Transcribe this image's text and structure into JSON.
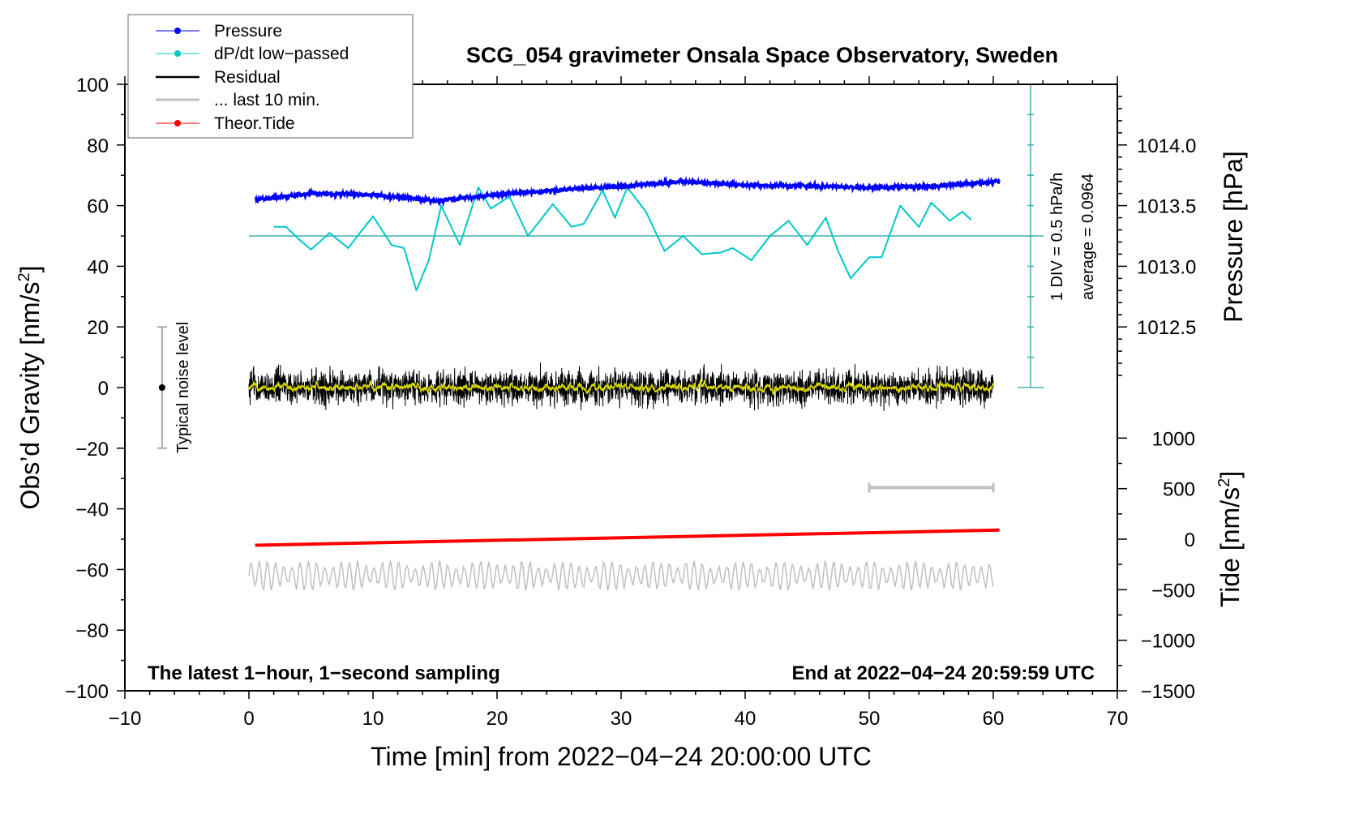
{
  "chart_data": {
    "type": "line",
    "title": "SCG_054 gravimeter Onsala Space Observatory, Sweden",
    "xlabel": "Time [min] from 2022−04−24 20:00:00 UTC",
    "ylabel_left": "Obs’d Gravity [nm/s²]",
    "ylabel_right_top": "Pressure [hPa]",
    "ylabel_right_bottom": "Tide [nm/s²]",
    "xlim": [
      -10,
      70
    ],
    "ylim": [
      -100,
      100
    ],
    "xticks": [
      "−10",
      "0",
      "10",
      "20",
      "30",
      "40",
      "50",
      "60",
      "70"
    ],
    "yticks": [
      "100",
      "80",
      "60",
      "40",
      "20",
      "0",
      "−20",
      "−40",
      "−60",
      "−80",
      "−100"
    ],
    "pressure_ticks": [
      "1014.0",
      "1013.5",
      "1013.0",
      "1012.5"
    ],
    "tide_ticks": [
      "1000",
      "500",
      "0",
      "−500",
      "−1000",
      "−1500"
    ],
    "legend": {
      "placement": "top-left",
      "entries": [
        "Pressure",
        "dP/dt low−passed",
        "Residual",
        "... last 10 min.",
        "Theor.Tide"
      ]
    },
    "annotations": {
      "noise_label": "Typical noise level",
      "div_label": "1 DIV = 0.5 hPa/h",
      "average_label": "average = 0.0964",
      "bottom_left": "The latest 1−hour, 1−second sampling",
      "bottom_right": "End at 2022−04−24 20:59:59 UTC"
    },
    "colors": {
      "pressure": "#0000ff",
      "dpdt": "#00c8c8",
      "residual": "#000000",
      "residual_smooth": "#d8d800",
      "last10": "#c0c0c0",
      "tide": "#ff0000",
      "scale": "#40b0b0"
    },
    "series": [
      {
        "name": "Pressure",
        "unit": "hPa",
        "x": [
          0.5,
          5,
          10,
          15,
          20,
          25,
          30,
          35,
          40,
          45,
          50,
          55,
          60.5
        ],
        "values": [
          1013.55,
          1013.6,
          1013.59,
          1013.54,
          1013.59,
          1013.63,
          1013.66,
          1013.7,
          1013.67,
          1013.66,
          1013.65,
          1013.66,
          1013.7
        ]
      },
      {
        "name": "dP/dt low-passed",
        "unit": "nm/s2 axis",
        "baseline": 50,
        "x": [
          2,
          3,
          4,
          5,
          6.5,
          8,
          10,
          11.5,
          12.5,
          13.5,
          14.5,
          15.5,
          17,
          18.5,
          19.5,
          21,
          22.5,
          24.5,
          26,
          27,
          28.5,
          29.5,
          30.5,
          32,
          33.5,
          35,
          36.5,
          38,
          39,
          40.5,
          42,
          43.5,
          45,
          46.5,
          47.5,
          48.5,
          50,
          51,
          52.5,
          54,
          55,
          56.5,
          57.5,
          58.3
        ],
        "values": [
          53,
          53,
          49,
          45.5,
          51,
          46,
          56.5,
          47,
          46,
          32,
          42,
          60,
          47,
          66,
          59,
          63,
          50,
          60.5,
          53,
          54,
          65,
          56,
          66,
          58,
          45,
          50,
          44,
          44.5,
          46,
          42,
          50,
          55,
          47,
          56,
          45,
          36,
          43,
          43,
          60,
          53,
          61,
          55,
          58,
          55
        ]
      },
      {
        "name": "Residual",
        "center": 0,
        "amplitude": 5,
        "x_range": [
          0,
          60
        ]
      },
      {
        "name": "... last 10 min.",
        "center": -62,
        "amplitude": 5,
        "x_range": [
          0,
          60
        ]
      },
      {
        "name": "Theor.Tide",
        "unit": "nm/s2",
        "x": [
          0.5,
          60.5
        ],
        "values": [
          -60,
          90
        ]
      }
    ],
    "noise_bar": {
      "x": -7,
      "range": [
        -20,
        20
      ]
    },
    "last10_bar": {
      "x_range": [
        50,
        60
      ],
      "y": -33
    }
  }
}
